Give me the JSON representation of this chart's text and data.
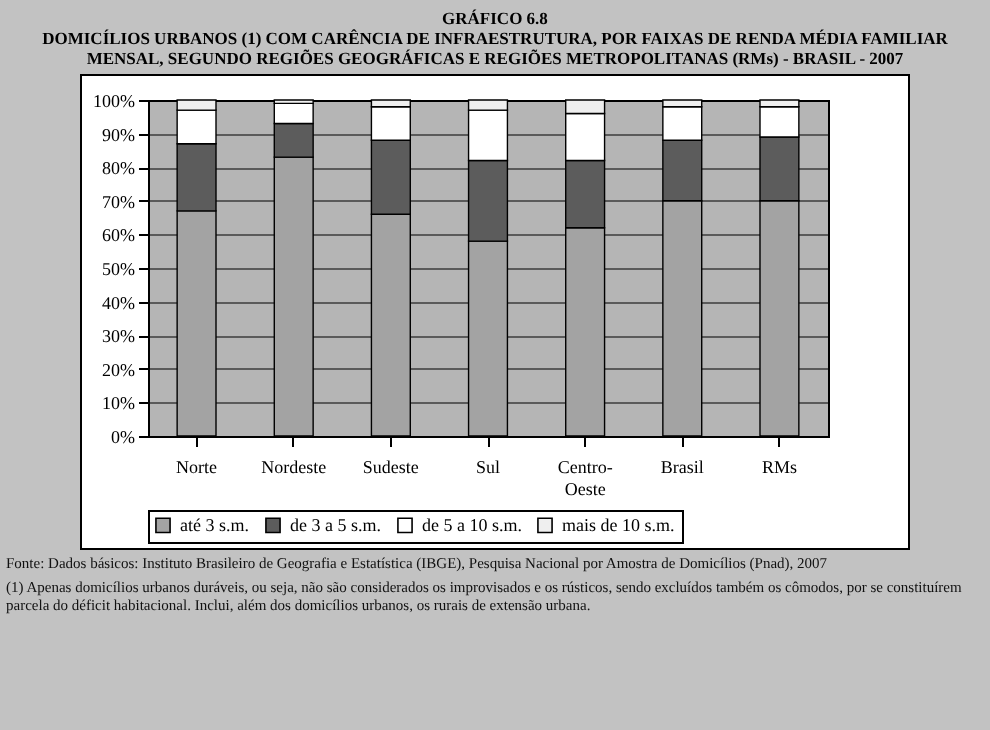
{
  "chart_data": {
    "type": "bar",
    "stacked": true,
    "title": "GRÁFICO 6.8",
    "subtitle": "DOMICÍLIOS URBANOS (1) COM CARÊNCIA DE INFRAESTRUTURA, POR FAIXAS DE RENDA MÉDIA FAMILIAR MENSAL, SEGUNDO REGIÕES GEOGRÁFICAS E REGIÕES METROPOLITANAS (RMs) - BRASIL - 2007",
    "categories": [
      "Norte",
      "Nordeste",
      "Sudeste",
      "Sul",
      "Centro-Oeste",
      "Brasil",
      "RMs"
    ],
    "series": [
      {
        "name": "até 3 s.m.",
        "color": "#a3a3a3",
        "values": [
          67,
          83,
          66,
          58,
          62,
          70,
          70
        ]
      },
      {
        "name": "de 3 a 5 s.m.",
        "color": "#5c5c5c",
        "values": [
          20,
          10,
          22,
          24,
          20,
          18,
          19
        ]
      },
      {
        "name": "de 5 a 10 s.m.",
        "color": "#ffffff",
        "values": [
          10,
          6,
          10,
          15,
          14,
          10,
          9
        ]
      },
      {
        "name": "mais de 10 s.m.",
        "color": "#efefef",
        "values": [
          3,
          1,
          2,
          3,
          4,
          2,
          2
        ]
      }
    ],
    "ylim": [
      0,
      100
    ],
    "yticks": [
      {
        "value": 0,
        "label": "0%"
      },
      {
        "value": 10,
        "label": "10%"
      },
      {
        "value": 20,
        "label": "20%"
      },
      {
        "value": 30,
        "label": "30%"
      },
      {
        "value": 40,
        "label": "40%"
      },
      {
        "value": 50,
        "label": "50%"
      },
      {
        "value": 60,
        "label": "60%"
      },
      {
        "value": 70,
        "label": "70%"
      },
      {
        "value": 80,
        "label": "80%"
      },
      {
        "value": 90,
        "label": "90%"
      },
      {
        "value": 100,
        "label": "100%"
      }
    ],
    "grid": "y",
    "legend": "bottom",
    "annotations": [
      "Fonte: Dados básicos: Instituto Brasileiro de Geografia e Estatística (IBGE), Pesquisa Nacional por Amostra de Domicílios (Pnad), 2007",
      "(1) Apenas domicílios urbanos duráveis, ou seja, não são considerados os improvisados e os rústicos, sendo excluídos também os cômodos, por se constituírem parcela do déficit habitacional. Inclui, além dos domicílios urbanos, os rurais de extensão urbana."
    ]
  }
}
